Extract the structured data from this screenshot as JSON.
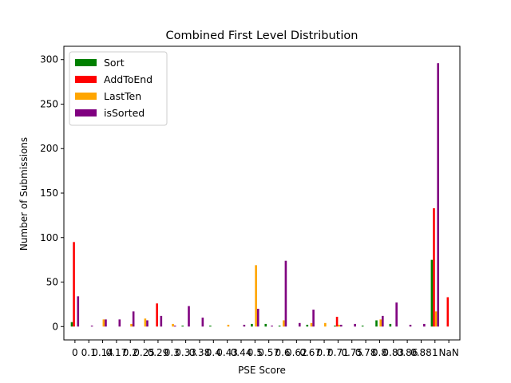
{
  "chart_data": {
    "type": "bar",
    "title": "Combined First Level Distribution",
    "xlabel": "PSE Score",
    "ylabel": "Number of Submissions",
    "ylim": [
      -15,
      315
    ],
    "yticks": [
      0,
      50,
      100,
      150,
      200,
      250,
      300
    ],
    "grid": false,
    "legend_position": "top-left",
    "categories": [
      "0",
      "0.1",
      "0.14",
      "0.17",
      "0.2",
      "0.25",
      "0.29",
      "0.3",
      "0.33",
      "0.38",
      "0.4",
      "0.43",
      "0.44",
      "0.5",
      "0.57",
      "0.6",
      "0.62",
      "0.67",
      "0.7",
      "0.71",
      "0.75",
      "0.78",
      "0.8",
      "0.83",
      "0.86",
      "0.88",
      "1",
      "NaN"
    ],
    "tick_labels": [
      "0",
      "0.1",
      "0.14",
      "0.17",
      "0.2",
      "0.25",
      "0.29",
      "0.3",
      "0.33",
      "0.38",
      "0.4",
      "0.43",
      "0.44",
      "0.5",
      "0.57",
      "0.6",
      "0.62",
      "0.67",
      "0.7",
      "0.71",
      "0.75",
      "0.78",
      "0.8",
      "0.83",
      "0.86",
      "0.88",
      "1",
      "NaN"
    ],
    "series": [
      {
        "name": "Sort",
        "color": "#008000",
        "values": [
          5,
          0,
          0,
          0,
          0,
          0,
          0,
          0,
          1,
          0,
          1,
          0,
          0,
          3,
          3,
          1,
          0,
          2,
          0,
          1,
          0,
          1,
          7,
          3,
          0,
          0,
          75,
          0
        ]
      },
      {
        "name": "AddToEnd",
        "color": "#ff0000",
        "values": [
          95,
          0,
          0,
          0,
          0,
          0,
          26,
          0,
          0,
          0,
          0,
          0,
          0,
          0,
          0,
          0,
          0,
          0,
          0,
          11,
          0,
          0,
          0,
          0,
          0,
          0,
          133,
          33
        ]
      },
      {
        "name": "LastTen",
        "color": "#ffa500",
        "values": [
          0,
          0,
          8,
          0,
          3,
          9,
          0,
          3,
          0,
          0,
          0,
          2,
          0,
          69,
          0,
          7,
          0,
          4,
          4,
          2,
          0,
          0,
          8,
          0,
          0,
          0,
          17,
          0
        ]
      },
      {
        "name": "isSorted",
        "color": "#800080",
        "values": [
          34,
          1,
          8,
          8,
          17,
          7,
          12,
          1,
          23,
          10,
          0,
          0,
          2,
          20,
          1,
          74,
          4,
          19,
          0,
          2,
          3,
          0,
          12,
          27,
          2,
          3,
          296,
          0
        ]
      }
    ]
  }
}
